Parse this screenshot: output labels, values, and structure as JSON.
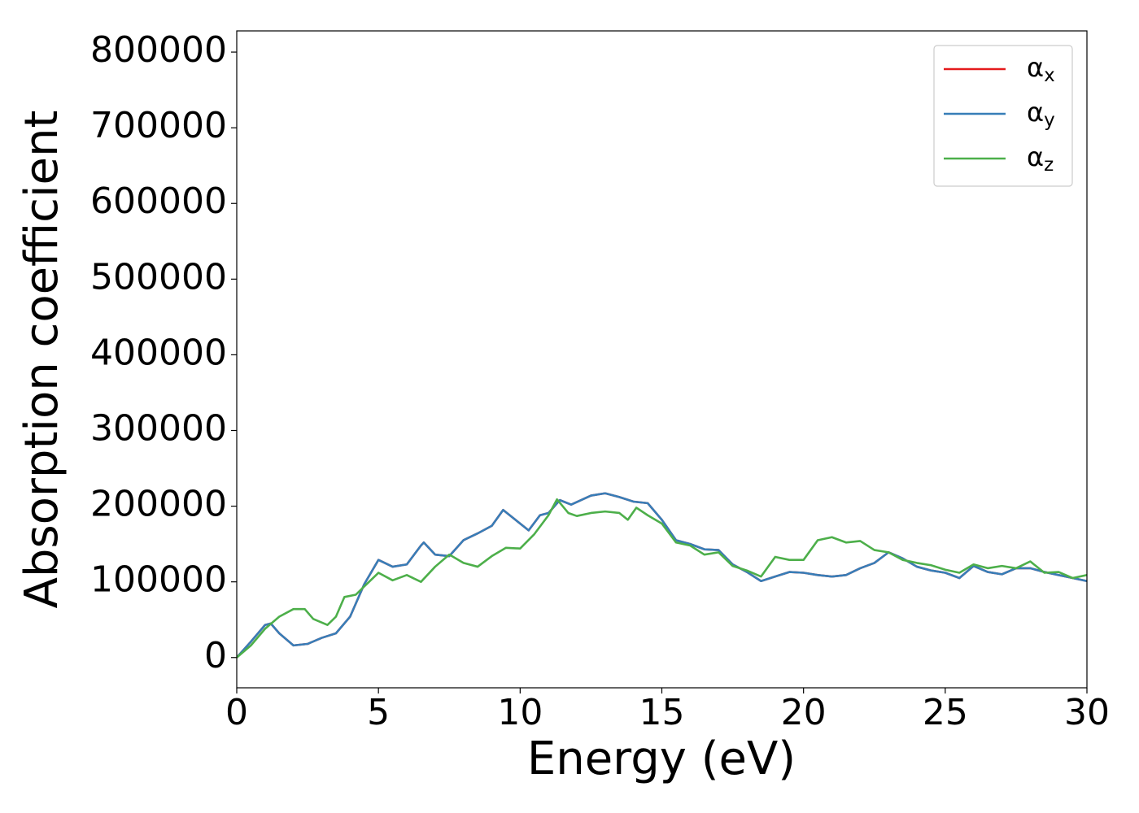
{
  "chart_data": {
    "type": "line",
    "xlabel": "Energy (eV)",
    "ylabel": "Absorption coefficient",
    "xlim": [
      0,
      30
    ],
    "xticks": [
      0,
      5,
      10,
      15,
      20,
      25,
      30
    ],
    "ylim": [
      -40000,
      828000
    ],
    "yticks": [
      0,
      100000,
      200000,
      300000,
      400000,
      500000,
      600000,
      700000,
      800000
    ],
    "grid": false,
    "legend": "upper right",
    "series": [
      {
        "name": "αx",
        "color": "#e41a1c",
        "x": [
          0,
          0.5,
          1.0,
          1.2,
          1.5,
          2.0,
          2.5,
          3.0,
          3.5,
          4.0,
          4.5,
          5.0,
          5.5,
          6.0,
          6.5,
          6.6,
          7.0,
          7.5,
          8.0,
          8.5,
          9.0,
          9.4,
          10.0,
          10.3,
          10.7,
          11.0,
          11.4,
          11.8,
          12.5,
          13.0,
          13.5,
          14.0,
          14.5,
          15.0,
          15.5,
          16.0,
          16.5,
          17.0,
          17.5,
          18.0,
          18.5,
          19.0,
          19.5,
          20.0,
          20.5,
          21.0,
          21.5,
          22.0,
          22.5,
          23.0,
          23.5,
          24.0,
          24.5,
          25.0,
          25.5,
          26.0,
          26.5,
          27.0,
          27.5,
          28.0,
          28.5,
          29.0,
          29.5,
          30.0
        ],
        "values": [
          0,
          21000,
          43000,
          45000,
          32000,
          16000,
          18000,
          26000,
          32000,
          54000,
          97000,
          129000,
          120000,
          123000,
          148000,
          152000,
          136000,
          134000,
          155000,
          164000,
          174000,
          195000,
          177000,
          168000,
          188000,
          191000,
          208000,
          202000,
          214000,
          217000,
          212000,
          206000,
          204000,
          182000,
          155000,
          150000,
          143000,
          142000,
          123000,
          113000,
          101000,
          107000,
          113000,
          112000,
          109000,
          107000,
          109000,
          118000,
          125000,
          139000,
          131000,
          120000,
          115000,
          112000,
          105000,
          121000,
          113000,
          110000,
          118000,
          118000,
          113000,
          109000,
          105000,
          101000
        ]
      },
      {
        "name": "αy",
        "color": "#377eb8",
        "x": [
          0,
          0.5,
          1.0,
          1.2,
          1.5,
          2.0,
          2.5,
          3.0,
          3.5,
          4.0,
          4.5,
          5.0,
          5.5,
          6.0,
          6.5,
          6.6,
          7.0,
          7.5,
          8.0,
          8.5,
          9.0,
          9.4,
          10.0,
          10.3,
          10.7,
          11.0,
          11.4,
          11.8,
          12.5,
          13.0,
          13.5,
          14.0,
          14.5,
          15.0,
          15.5,
          16.0,
          16.5,
          17.0,
          17.5,
          18.0,
          18.5,
          19.0,
          19.5,
          20.0,
          20.5,
          21.0,
          21.5,
          22.0,
          22.5,
          23.0,
          23.5,
          24.0,
          24.5,
          25.0,
          25.5,
          26.0,
          26.5,
          27.0,
          27.5,
          28.0,
          28.5,
          29.0,
          29.5,
          30.0
        ],
        "values": [
          0,
          21000,
          43000,
          45000,
          32000,
          16000,
          18000,
          26000,
          32000,
          54000,
          97000,
          129000,
          120000,
          123000,
          148000,
          152000,
          136000,
          134000,
          155000,
          164000,
          174000,
          195000,
          177000,
          168000,
          188000,
          191000,
          208000,
          202000,
          214000,
          217000,
          212000,
          206000,
          204000,
          182000,
          155000,
          150000,
          143000,
          142000,
          123000,
          113000,
          101000,
          107000,
          113000,
          112000,
          109000,
          107000,
          109000,
          118000,
          125000,
          139000,
          131000,
          120000,
          115000,
          112000,
          105000,
          121000,
          113000,
          110000,
          118000,
          118000,
          113000,
          109000,
          105000,
          101000
        ]
      },
      {
        "name": "αz",
        "color": "#4daf4a",
        "x": [
          0,
          0.5,
          1.0,
          1.5,
          2.0,
          2.4,
          2.7,
          3.2,
          3.5,
          3.8,
          4.2,
          4.5,
          5.0,
          5.5,
          6.0,
          6.5,
          7.0,
          7.5,
          8.0,
          8.5,
          9.0,
          9.5,
          10.0,
          10.5,
          11.0,
          11.3,
          11.7,
          12.0,
          12.5,
          13.0,
          13.5,
          13.8,
          14.1,
          14.5,
          15.0,
          15.5,
          16.0,
          16.5,
          17.0,
          17.5,
          18.0,
          18.5,
          19.0,
          19.5,
          20.0,
          20.5,
          21.0,
          21.5,
          22.0,
          22.5,
          23.0,
          23.5,
          24.0,
          24.5,
          25.0,
          25.5,
          26.0,
          26.5,
          27.0,
          27.5,
          28.0,
          28.5,
          29.0,
          29.5,
          30.0
        ],
        "values": [
          0,
          16000,
          38000,
          54000,
          64000,
          64000,
          51000,
          43000,
          54000,
          80000,
          83000,
          94000,
          112000,
          102000,
          109000,
          100000,
          120000,
          136000,
          125000,
          120000,
          134000,
          145000,
          144000,
          163000,
          188000,
          209000,
          191000,
          187000,
          191000,
          193000,
          191000,
          182000,
          198000,
          188000,
          177000,
          152000,
          148000,
          136000,
          139000,
          121000,
          115000,
          107000,
          133000,
          129000,
          129000,
          155000,
          159000,
          152000,
          154000,
          142000,
          139000,
          129000,
          125000,
          122000,
          116000,
          112000,
          123000,
          118000,
          121000,
          118000,
          127000,
          112000,
          113000,
          105000,
          109000
        ]
      }
    ]
  }
}
